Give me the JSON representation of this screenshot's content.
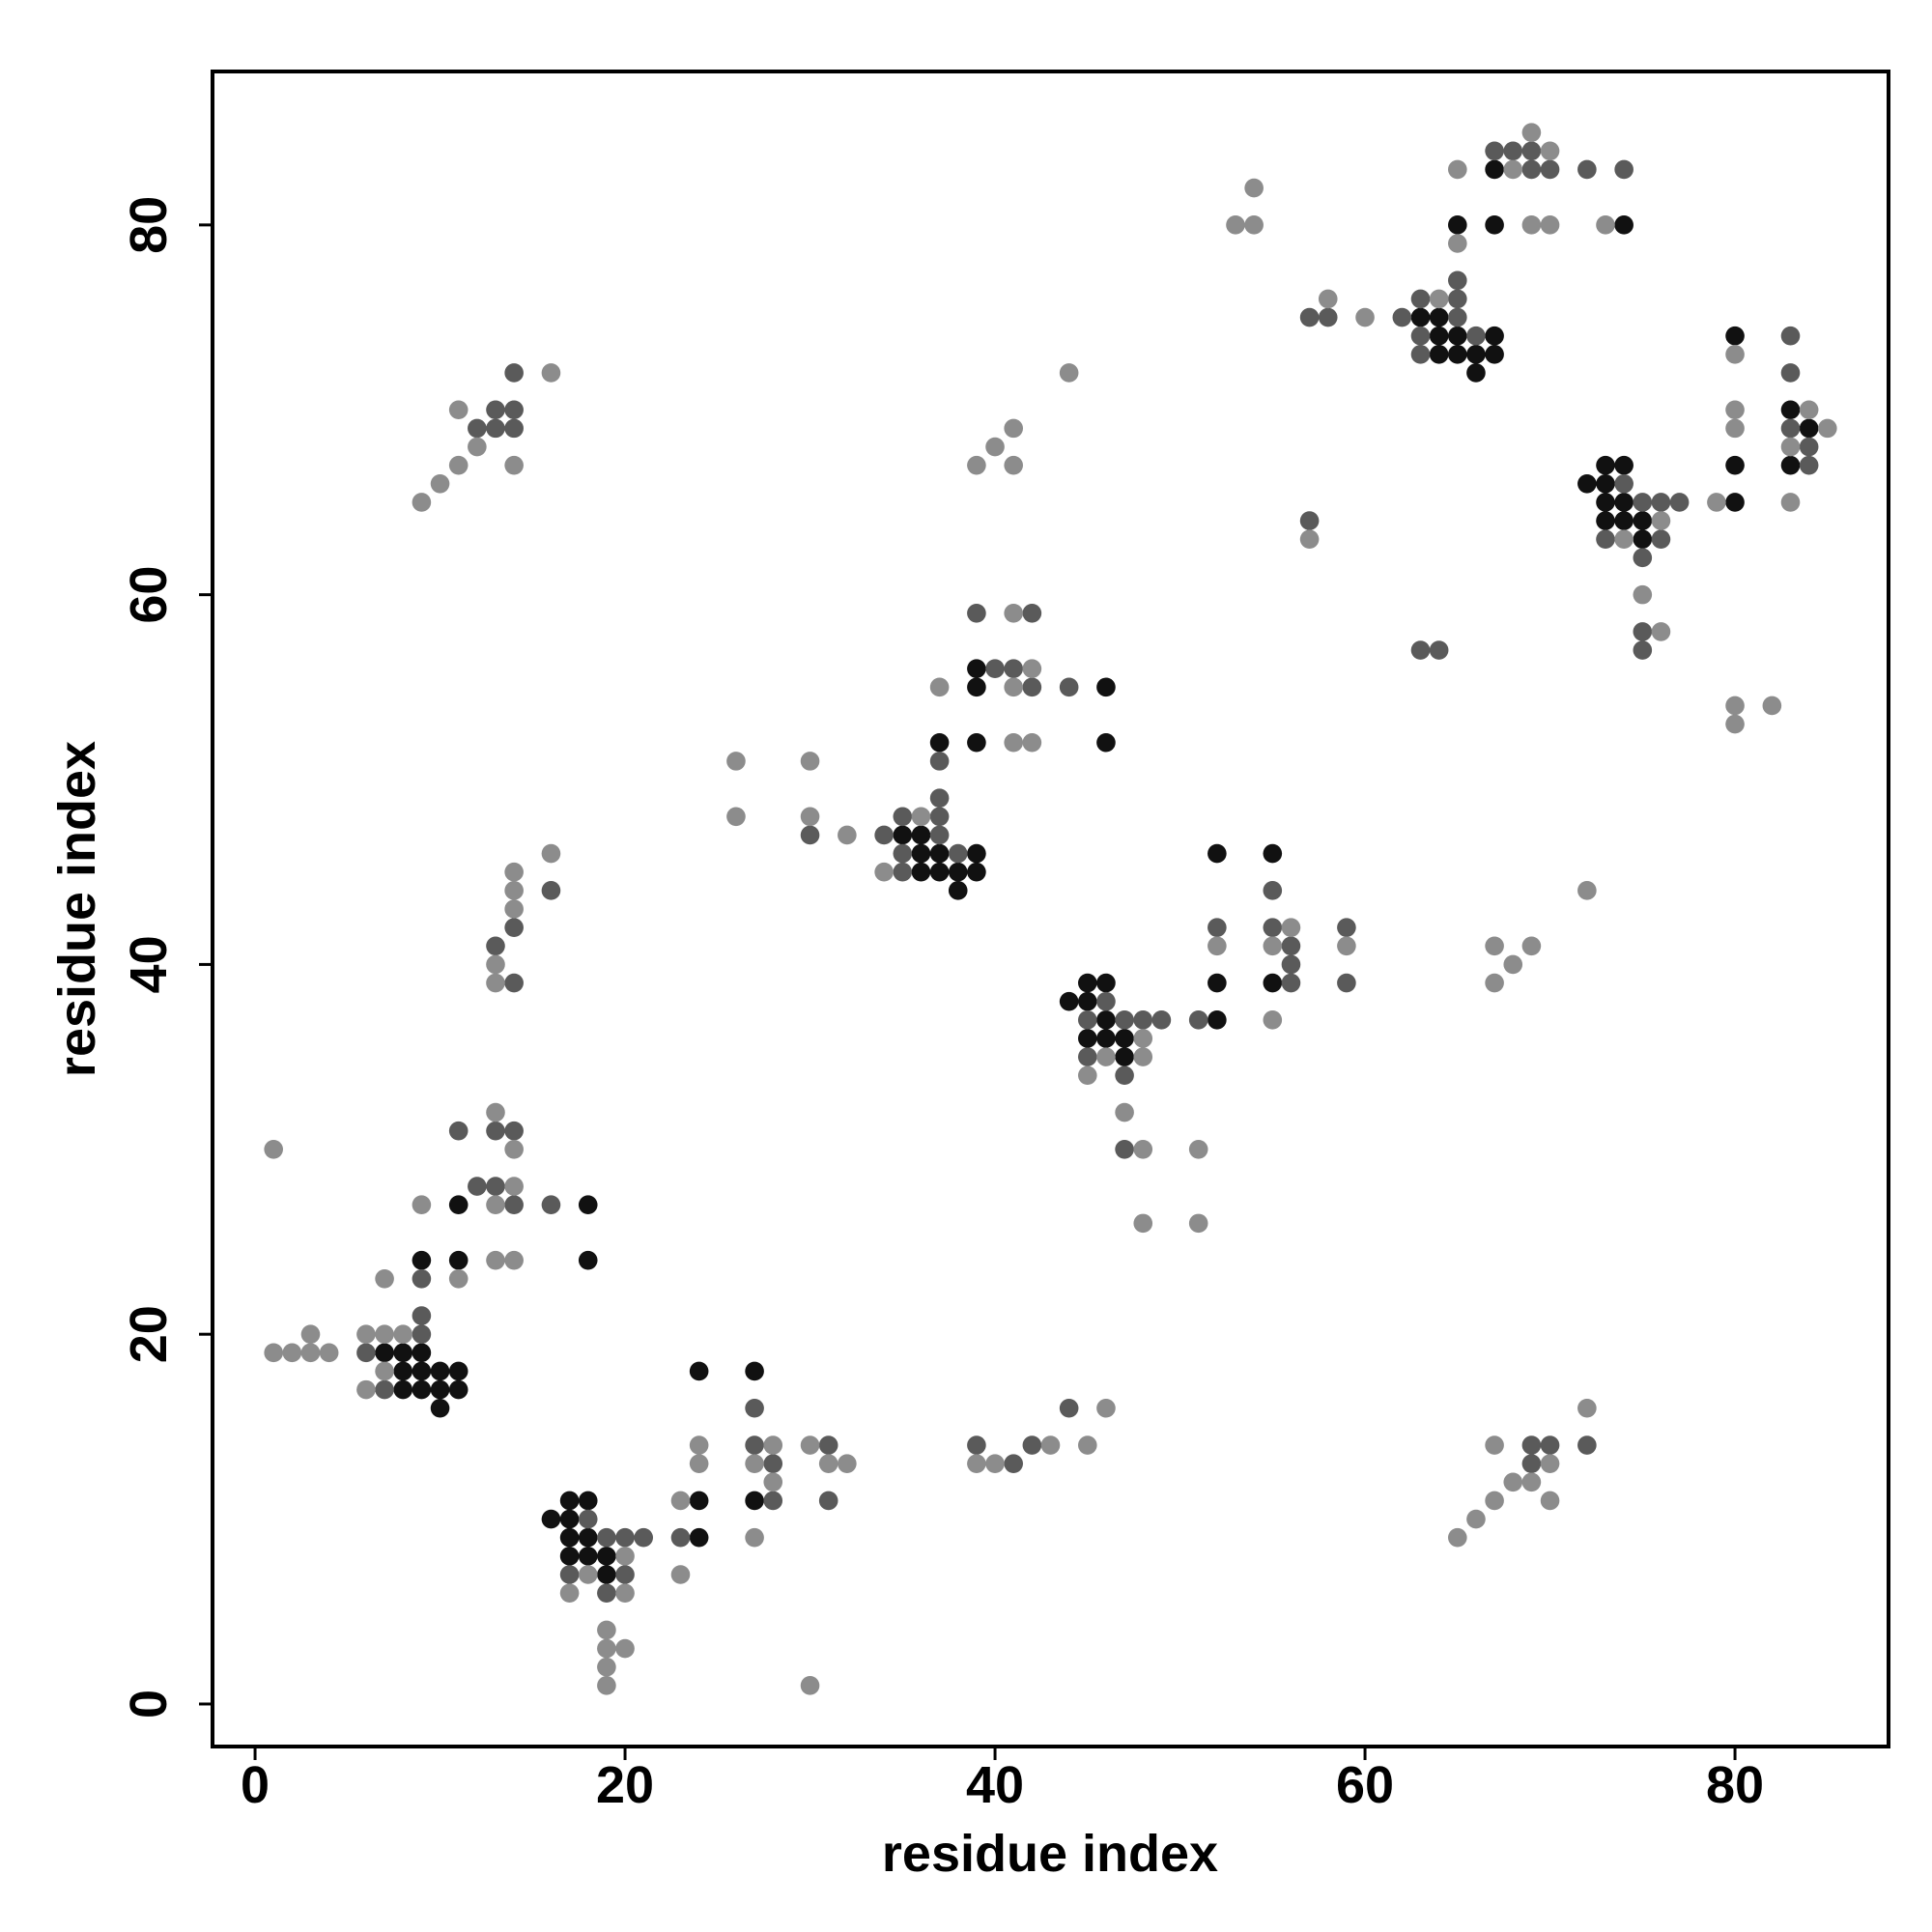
{
  "chart_data": {
    "type": "scatter",
    "xlabel": "residue index",
    "ylabel": "residue index",
    "xlim": [
      -2.3,
      88.3
    ],
    "ylim": [
      -2.3,
      88.3
    ],
    "xticks": [
      0,
      20,
      40,
      60,
      80
    ],
    "yticks": [
      0,
      20,
      40,
      60,
      80
    ],
    "series": [
      {
        "color": "#111111",
        "x": [
          7,
          8,
          8,
          8,
          9,
          9,
          9,
          10,
          10,
          10,
          11,
          11,
          9,
          11,
          11,
          18,
          18,
          16,
          17,
          17,
          17,
          17,
          18,
          18,
          18,
          19,
          19,
          24,
          24,
          24,
          27,
          27,
          35,
          36,
          36,
          36,
          37,
          37,
          38,
          38,
          39,
          39,
          37,
          39,
          39,
          39,
          46,
          46,
          44,
          45,
          45,
          45,
          46,
          46,
          46,
          47,
          47,
          52,
          52,
          52,
          55,
          55,
          63,
          64,
          64,
          64,
          65,
          65,
          65,
          66,
          66,
          67,
          67,
          67,
          67,
          74,
          72,
          73,
          73,
          73,
          73,
          74,
          74,
          74,
          75,
          75,
          80,
          80,
          80,
          83,
          83,
          84
        ],
        "values": [
          19,
          19,
          18,
          17,
          19,
          18,
          17,
          18,
          17,
          16,
          18,
          17,
          24,
          27,
          24,
          27,
          24,
          10,
          11,
          10,
          9,
          8,
          11,
          9,
          8,
          8,
          7,
          18,
          11,
          9,
          18,
          11,
          47,
          47,
          46,
          45,
          46,
          45,
          45,
          44,
          46,
          45,
          52,
          56,
          55,
          52,
          55,
          52,
          38,
          39,
          38,
          36,
          39,
          37,
          36,
          36,
          35,
          46,
          39,
          37,
          46,
          39,
          75,
          75,
          74,
          73,
          74,
          73,
          80,
          73,
          72,
          74,
          73,
          83,
          80,
          80,
          66,
          67,
          66,
          65,
          64,
          67,
          65,
          64,
          64,
          63,
          74,
          67,
          65,
          70,
          67,
          69
        ]
      },
      {
        "color": "#5a5a5a",
        "x": [
          6,
          7,
          9,
          9,
          9,
          11,
          12,
          13,
          13,
          14,
          14,
          16,
          13,
          14,
          14,
          16,
          12,
          13,
          13,
          14,
          14,
          14,
          17,
          18,
          19,
          19,
          20,
          20,
          21,
          23,
          27,
          27,
          28,
          28,
          31,
          31,
          30,
          34,
          35,
          35,
          35,
          37,
          37,
          37,
          38,
          37,
          39,
          40,
          41,
          42,
          42,
          44,
          39,
          41,
          42,
          44,
          45,
          45,
          46,
          47,
          47,
          47,
          48,
          49,
          51,
          52,
          55,
          55,
          56,
          56,
          56,
          59,
          59,
          57,
          57,
          58,
          62,
          63,
          63,
          63,
          63,
          64,
          65,
          65,
          65,
          66,
          67,
          68,
          69,
          69,
          70,
          72,
          74,
          73,
          74,
          75,
          75,
          75,
          75,
          76,
          76,
          77,
          83,
          83,
          83,
          84,
          84,
          69,
          69,
          70,
          72
        ],
        "values": [
          19,
          17,
          21,
          20,
          23,
          31,
          28,
          31,
          28,
          31,
          27,
          27,
          41,
          42,
          39,
          44,
          69,
          70,
          69,
          72,
          70,
          69,
          7,
          10,
          9,
          6,
          9,
          7,
          9,
          9,
          16,
          14,
          13,
          11,
          14,
          11,
          47,
          47,
          48,
          46,
          45,
          49,
          48,
          47,
          46,
          51,
          59,
          56,
          56,
          59,
          55,
          55,
          14,
          13,
          14,
          16,
          37,
          35,
          38,
          37,
          34,
          30,
          37,
          37,
          37,
          42,
          44,
          42,
          41,
          40,
          39,
          42,
          39,
          75,
          64,
          75,
          75,
          76,
          74,
          73,
          57,
          57,
          77,
          76,
          75,
          74,
          84,
          84,
          84,
          83,
          83,
          83,
          83,
          63,
          66,
          65,
          62,
          58,
          57,
          65,
          63,
          65,
          74,
          72,
          69,
          68,
          67,
          14,
          13,
          14,
          14
        ]
      },
      {
        "color": "#8c8c8c",
        "x": [
          1,
          2,
          3,
          3,
          4,
          6,
          6,
          7,
          7,
          8,
          1,
          7,
          9,
          11,
          13,
          13,
          13,
          14,
          14,
          14,
          13,
          13,
          14,
          14,
          14,
          16,
          9,
          10,
          11,
          11,
          12,
          14,
          16,
          17,
          18,
          19,
          19,
          19,
          19,
          20,
          20,
          20,
          23,
          23,
          24,
          24,
          27,
          27,
          28,
          28,
          30,
          30,
          31,
          32,
          26,
          26,
          30,
          30,
          32,
          34,
          36,
          37,
          41,
          41,
          41,
          42,
          42,
          39,
          40,
          41,
          41,
          44,
          39,
          40,
          43,
          45,
          46,
          45,
          46,
          47,
          48,
          48,
          48,
          48,
          51,
          51,
          52,
          55,
          55,
          56,
          59,
          53,
          54,
          54,
          57,
          58,
          60,
          64,
          65,
          65,
          68,
          69,
          69,
          70,
          70,
          73,
          74,
          75,
          76,
          76,
          79,
          80,
          80,
          80,
          80,
          80,
          82,
          83,
          83,
          84,
          85,
          67,
          67,
          68,
          69,
          72,
          65,
          66,
          67,
          67,
          68,
          69,
          70,
          70,
          72
        ],
        "values": [
          19,
          19,
          19,
          20,
          19,
          20,
          17,
          20,
          18,
          20,
          30,
          23,
          27,
          23,
          32,
          27,
          24,
          30,
          28,
          24,
          40,
          39,
          45,
          44,
          43,
          46,
          65,
          66,
          67,
          70,
          68,
          67,
          72,
          6,
          7,
          4,
          3,
          2,
          1,
          8,
          6,
          3,
          11,
          7,
          14,
          13,
          13,
          9,
          14,
          12,
          14,
          1,
          13,
          13,
          51,
          48,
          51,
          48,
          47,
          45,
          48,
          55,
          59,
          55,
          52,
          56,
          52,
          67,
          68,
          69,
          67,
          72,
          13,
          13,
          14,
          14,
          16,
          34,
          35,
          32,
          36,
          35,
          30,
          26,
          30,
          26,
          41,
          41,
          37,
          42,
          41,
          80,
          82,
          80,
          63,
          76,
          75,
          76,
          79,
          83,
          83,
          85,
          80,
          84,
          80,
          80,
          63,
          60,
          64,
          58,
          65,
          73,
          70,
          69,
          54,
          53,
          54,
          68,
          65,
          70,
          69,
          41,
          39,
          40,
          41,
          44,
          9,
          10,
          14,
          11,
          12,
          12,
          13,
          11,
          16
        ]
      }
    ]
  }
}
